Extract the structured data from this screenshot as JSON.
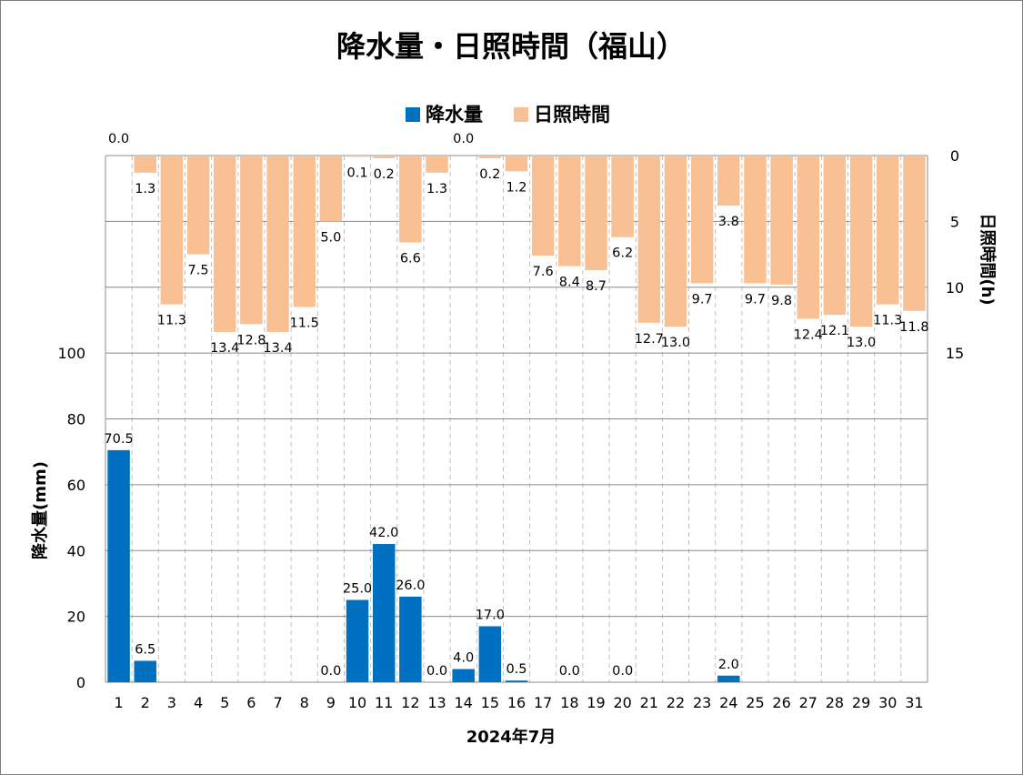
{
  "chart_data": {
    "type": "bar",
    "title": "降水量・日照時間（福山）",
    "xlabel": "2024年7月",
    "categories": [
      "1",
      "2",
      "3",
      "4",
      "5",
      "6",
      "7",
      "8",
      "9",
      "10",
      "11",
      "12",
      "13",
      "14",
      "15",
      "16",
      "17",
      "18",
      "19",
      "20",
      "21",
      "22",
      "23",
      "24",
      "25",
      "26",
      "27",
      "28",
      "29",
      "30",
      "31"
    ],
    "series": [
      {
        "name": "降水量",
        "axis": "left",
        "color": "#0070c0",
        "values": [
          70.5,
          6.5,
          null,
          null,
          null,
          null,
          null,
          null,
          0.0,
          25.0,
          42.0,
          26.0,
          0.0,
          4.0,
          17.0,
          0.5,
          null,
          0.0,
          null,
          0.0,
          null,
          null,
          null,
          2.0,
          null,
          null,
          null,
          null,
          null,
          null,
          null
        ],
        "labels": [
          "70.5",
          "6.5",
          "",
          "",
          "",
          "",
          "",
          "",
          "0.0",
          "25.0",
          "42.0",
          "26.0",
          "0.0",
          "4.0",
          "17.0",
          "0.5",
          "",
          "0.0",
          "",
          "0.0",
          "",
          "",
          "",
          "2.0",
          "",
          "",
          "",
          "",
          "",
          "",
          ""
        ]
      },
      {
        "name": "日照時間",
        "axis": "right",
        "color": "#f8c093",
        "values": [
          0.0,
          1.3,
          11.3,
          7.5,
          13.4,
          12.8,
          13.4,
          11.5,
          5.0,
          0.1,
          0.2,
          6.6,
          1.3,
          0.0,
          0.2,
          1.2,
          7.6,
          8.4,
          8.7,
          6.2,
          12.7,
          13.0,
          9.7,
          3.8,
          9.7,
          9.8,
          12.4,
          12.1,
          13.0,
          11.3,
          11.8
        ],
        "labels": [
          "0.0",
          "1.3",
          "11.3",
          "7.5",
          "13.4",
          "12.8",
          "13.4",
          "11.5",
          "5.0",
          "0.1",
          "0.2",
          "6.6",
          "1.3",
          "0.0",
          "0.2",
          "1.2",
          "7.6",
          "8.4",
          "8.7",
          "6.2",
          "12.7",
          "13.0",
          "9.7",
          "3.8",
          "9.7",
          "9.8",
          "12.4",
          "12.1",
          "13.0",
          "11.3",
          "11.8"
        ]
      }
    ],
    "y_left": {
      "label": "降水量(mm)",
      "ticks": [
        0,
        20,
        40,
        60,
        80,
        100
      ],
      "tick_labels": [
        "0",
        "20",
        "40",
        "60",
        "80",
        "100"
      ],
      "range": [
        0,
        160
      ]
    },
    "y_right": {
      "label": "日照時間(h)",
      "ticks": [
        0,
        5,
        10,
        15
      ],
      "tick_labels": [
        "0",
        "5",
        "10",
        "15"
      ],
      "range": [
        0,
        40
      ],
      "reversed": true
    },
    "legend": "top-center",
    "grid": true
  }
}
